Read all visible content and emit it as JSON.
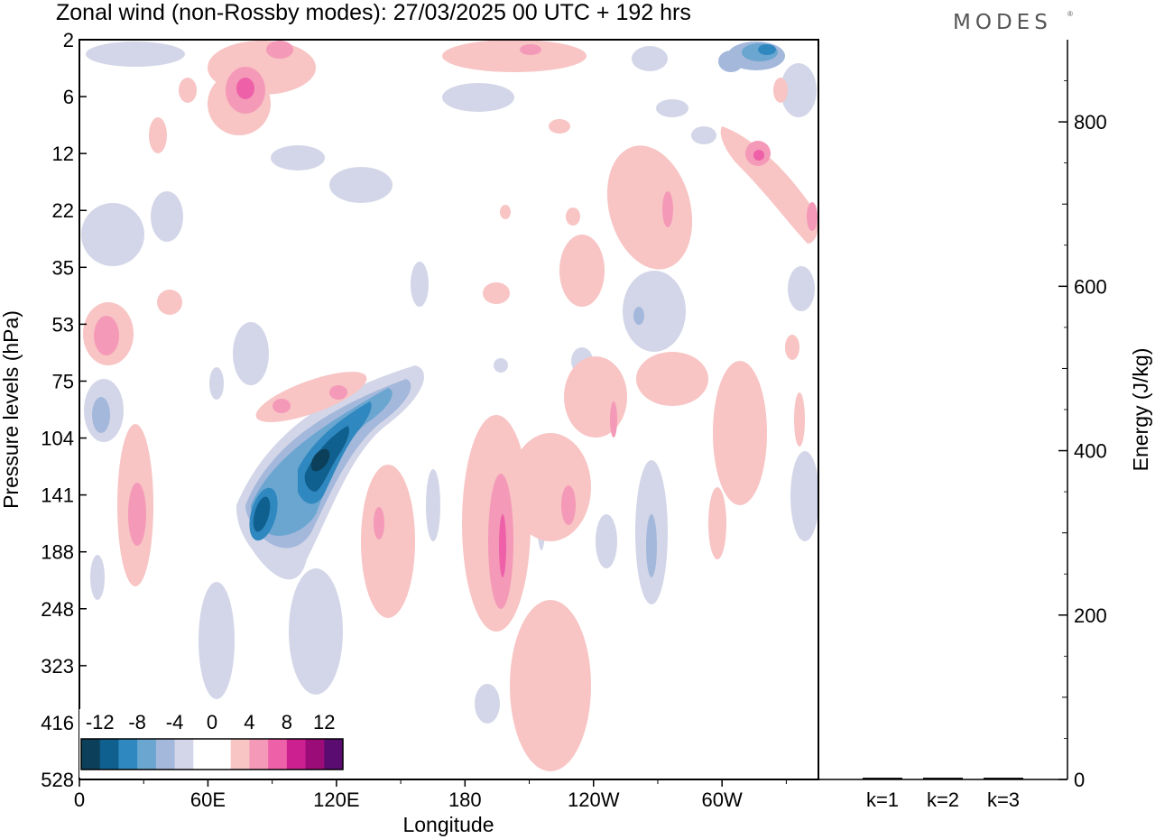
{
  "title": "Zonal wind (non-Rossby modes):  27/03/2025  00 UTC  + 192 hrs",
  "brand": "MODES",
  "chart_data": [
    {
      "type": "heatmap",
      "field": "zonal wind anomaly (non-Rossby modes)",
      "xlabel": "Longitude",
      "ylabel": "Pressure levels (hPa)",
      "x_ticks": [
        "0",
        "60E",
        "120E",
        "180",
        "120W",
        "60W"
      ],
      "y_ticks": [
        "2",
        "6",
        "12",
        "22",
        "35",
        "53",
        "75",
        "104",
        "141",
        "188",
        "248",
        "323",
        "416",
        "528"
      ],
      "colorbar": {
        "tick_labels": [
          "-12",
          "-8",
          "-4",
          "0",
          "4",
          "8",
          "12"
        ],
        "colors": [
          "#0c3f5a",
          "#10608f",
          "#2f88bf",
          "#6aa6d0",
          "#a4b8dc",
          "#d3d6e8",
          "#ffffff",
          "#ffffff",
          "#f8c4c4",
          "#f49ab8",
          "#ee60a8",
          "#cc2090",
          "#9c0c78",
          "#5a0c70"
        ]
      },
      "features": [
        {
          "sign": "negative",
          "peak": "-12",
          "lon": [
            90,
            130
          ],
          "level": [
            75,
            188
          ],
          "desc": "tilted easterly jet core near 90E-125E"
        },
        {
          "sign": "positive",
          "peak": "8",
          "lon": [
            190,
            200
          ],
          "level": [
            141,
            248
          ],
          "desc": "westerly core near 165W"
        },
        {
          "sign": "positive",
          "peak": "8",
          "lon": [
            75,
            85
          ],
          "level": [
            2,
            12
          ],
          "desc": "upper-level westerly maximum"
        },
        {
          "sign": "positive",
          "peak": "8",
          "lon": [
            318,
            325
          ],
          "level": [
            6,
            22
          ],
          "desc": "upper-level westerly maximum near 40W"
        },
        {
          "sign": "negative",
          "peak": "-8",
          "lon": [
            320,
            330
          ],
          "level": [
            2,
            6
          ],
          "desc": "upper-level easterly near 35W"
        }
      ]
    },
    {
      "type": "bar",
      "categories": [
        "k=1",
        "k=2",
        "k=3"
      ],
      "values": [
        1,
        1,
        1
      ],
      "ylabel": "Energy (J/kg)",
      "ylim": [
        0,
        900
      ],
      "y_ticks": [
        "0",
        "200",
        "400",
        "600",
        "800"
      ]
    }
  ]
}
